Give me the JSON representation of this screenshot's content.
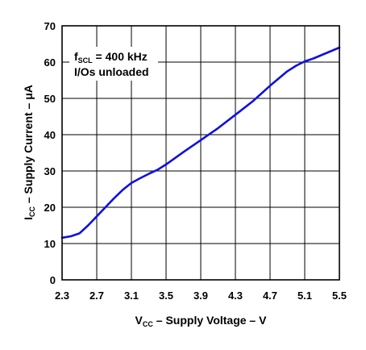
{
  "chart_data": {
    "type": "line",
    "xlabel": {
      "main": "V",
      "sub": "CC",
      "rest": " – Supply Voltage – V"
    },
    "ylabel": {
      "main": "I",
      "sub": "CC",
      "rest": " – Supply Current – μA"
    },
    "xlim": [
      2.3,
      5.5
    ],
    "ylim": [
      0,
      70
    ],
    "xticks": [
      2.3,
      2.7,
      3.1,
      3.5,
      3.9,
      4.3,
      4.7,
      5.1,
      5.5
    ],
    "xtick_labels": [
      "2.3",
      "2.7",
      "3.1",
      "3.5",
      "3.9",
      "4.3",
      "4.7",
      "5.1",
      "5.5"
    ],
    "yticks": [
      0,
      10,
      20,
      30,
      40,
      50,
      60,
      70
    ],
    "ytick_labels": [
      "0",
      "10",
      "20",
      "30",
      "40",
      "50",
      "60",
      "70"
    ],
    "grid": true,
    "annotation": {
      "line1_main": "f",
      "line1_sub": "SCL",
      "line1_rest": " = 400 kHz",
      "line2": "I/Os unloaded"
    },
    "series": [
      {
        "color": "#1010e0",
        "x": [
          2.3,
          2.4,
          2.5,
          2.6,
          2.7,
          2.8,
          2.9,
          3.0,
          3.1,
          3.2,
          3.3,
          3.4,
          3.5,
          3.7,
          3.9,
          4.1,
          4.3,
          4.5,
          4.7,
          4.9,
          5.0,
          5.1,
          5.2,
          5.3,
          5.4,
          5.5
        ],
        "y": [
          11.6,
          12.0,
          12.8,
          15.0,
          17.5,
          20.0,
          22.5,
          24.8,
          26.7,
          28.0,
          29.2,
          30.3,
          31.8,
          35.2,
          38.5,
          41.8,
          45.5,
          49.2,
          53.5,
          57.5,
          59.0,
          60.2,
          61.0,
          62.0,
          63.0,
          64.0
        ]
      }
    ]
  }
}
